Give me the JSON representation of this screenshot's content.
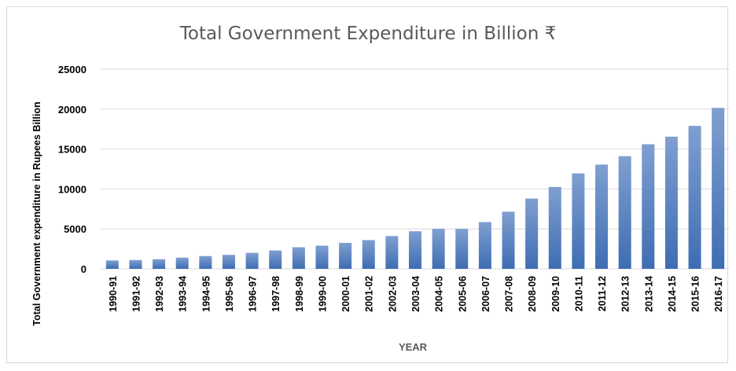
{
  "chart_data": {
    "type": "bar",
    "title": "Total Government Expenditure in Billion ₹",
    "xlabel": "YEAR",
    "ylabel": "Total Government expenditure in Rupees Billion",
    "ylim": [
      0,
      25000
    ],
    "yticks": [
      "0",
      "5000",
      "10000",
      "15000",
      "20000",
      "25000"
    ],
    "grid": true,
    "legend": "none",
    "colors": {
      "bar_top": "#7f9fd0",
      "bar_bottom": "#3e6db3",
      "grid": "#d9d9d9",
      "text": "#000000",
      "title": "#595959"
    },
    "categories": [
      "1990-91",
      "1991-92",
      "1992-93",
      "1993-94",
      "1994-95",
      "1995-96",
      "1996-97",
      "1997-98",
      "1998-99",
      "1999-00",
      "2000-01",
      "2001-02",
      "2002-03",
      "2003-04",
      "2004-05",
      "2005-06",
      "2006-07",
      "2007-08",
      "2008-09",
      "2009-10",
      "2010-11",
      "2011-12",
      "2012-13",
      "2013-14",
      "2014-15",
      "2015-16",
      "2016-17"
    ],
    "values": [
      1050,
      1100,
      1200,
      1400,
      1600,
      1750,
      2000,
      2300,
      2700,
      2900,
      3250,
      3600,
      4100,
      4700,
      5000,
      5000,
      5850,
      7150,
      8800,
      10250,
      11950,
      13050,
      14100,
      15600,
      16550,
      17900,
      20150
    ]
  }
}
